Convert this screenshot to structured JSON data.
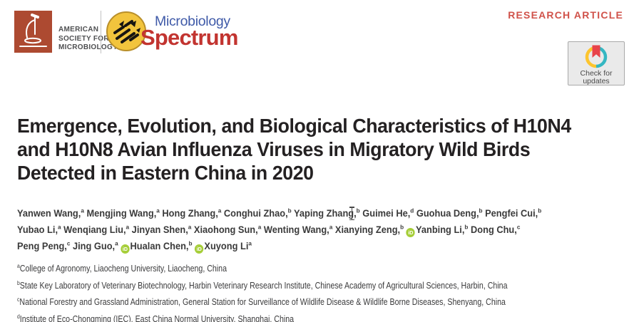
{
  "header": {
    "asm_logo": {
      "lines": [
        "AMERICAN",
        "SOCIETY FOR",
        "MICROBIOLOGY"
      ]
    },
    "journal": {
      "name_top": "Microbiology",
      "name_bottom": "Spectrum"
    },
    "article_type": "RESEARCH ARTICLE",
    "check_badge": {
      "line1": "Check for",
      "line2": "updates"
    }
  },
  "article": {
    "title_lines": [
      "Emergence, Evolution, and Biological Characteristics of H10N4",
      "and H10N8 Avian Influenza Viruses in Migratory Wild Birds",
      "Detected in Eastern China in 2020"
    ],
    "author_lines": [
      [
        {
          "name": "Yanwen Wang,",
          "sup": "a",
          "orcid": false
        },
        {
          "name": "Mengjing Wang,",
          "sup": "a",
          "orcid": false
        },
        {
          "name": "Hong Zhang,",
          "sup": "a",
          "orcid": false
        },
        {
          "name": "Conghui Zhao,",
          "sup": "b",
          "orcid": false
        },
        {
          "name": "Yaping Zhang,",
          "sup": "b",
          "orcid": false
        },
        {
          "name": "Guimei He,",
          "sup": "d",
          "orcid": false
        },
        {
          "name": "Guohua Deng,",
          "sup": "b",
          "orcid": false
        },
        {
          "name": "Pengfei Cui,",
          "sup": "b",
          "orcid": false
        }
      ],
      [
        {
          "name": "Yubao Li,",
          "sup": "a",
          "orcid": false
        },
        {
          "name": "Wenqiang Liu,",
          "sup": "a",
          "orcid": false
        },
        {
          "name": "Jinyan Shen,",
          "sup": "a",
          "orcid": false
        },
        {
          "name": "Xiaohong Sun,",
          "sup": "a",
          "orcid": false
        },
        {
          "name": "Wenting Wang,",
          "sup": "a",
          "orcid": false
        },
        {
          "name": "Xianying Zeng,",
          "sup": "b",
          "orcid": false
        },
        {
          "name": "Yanbing Li,",
          "sup": "b",
          "orcid": true
        },
        {
          "name": "Dong Chu,",
          "sup": "c",
          "orcid": false
        }
      ],
      [
        {
          "name": "Peng Peng,",
          "sup": "c",
          "orcid": false
        },
        {
          "name": "Jing Guo,",
          "sup": "a",
          "orcid": false
        },
        {
          "name": "Hualan Chen,",
          "sup": "b",
          "orcid": true
        },
        {
          "name": "Xuyong Li",
          "sup": "a",
          "orcid": true
        }
      ]
    ],
    "affiliations": [
      {
        "sup": "a",
        "text": "College of Agronomy, Liaocheng University, Liaocheng, China"
      },
      {
        "sup": "b",
        "text": "State Key Laboratory of Veterinary Biotechnology, Harbin Veterinary Research Institute, Chinese Academy of Agricultural Sciences, Harbin, China"
      },
      {
        "sup": "c",
        "text": "National Forestry and Grassland Administration, General Station for Surveillance of Wildlife Disease & Wildlife Borne Diseases, Shenyang, China"
      },
      {
        "sup": "d",
        "text": "Institute of Eco-Chongming (IEC), East China Normal University, Shanghai, China"
      }
    ]
  },
  "icons": {
    "orcid_label": "iD"
  },
  "colors": {
    "asm_red": "#ad4a31",
    "asm_text_gray": "#4e4f51",
    "journal_blue": "#3f5aa8",
    "journal_red": "#c23430",
    "petri_yellow": "#f2c43d",
    "petri_border": "#b98f2a",
    "article_type_red": "#d0524a",
    "title_black": "#242122",
    "body_text": "#3b3b3c",
    "orcid_green": "#a6ce39",
    "crossmark_teal": "#35b7c2",
    "crossmark_yellow": "#fdc52e",
    "crossmark_red": "#e8434a",
    "badge_bg": "#eaeaea",
    "badge_border": "#a9a9a9"
  }
}
